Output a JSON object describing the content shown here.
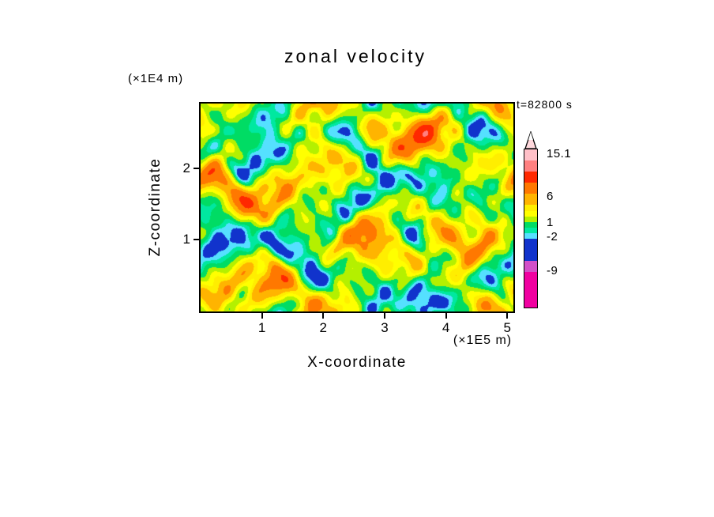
{
  "chart_data": {
    "type": "heatmap",
    "title": "zonal velocity",
    "xlabel": "X-coordinate",
    "ylabel": "Z-coordinate",
    "x_units_label": "(×1E5 m)",
    "y_units_label": "(×1E4 m)",
    "time_annotation": "t=82800 s",
    "x_ticks": [
      1,
      2,
      3,
      4,
      5
    ],
    "y_ticks": [
      1,
      2
    ],
    "x_range": [
      0,
      5.1
    ],
    "y_range": [
      0,
      2.9
    ],
    "contour_levels": [
      -12,
      -9,
      -2,
      -1,
      0,
      1,
      2,
      3,
      4,
      6,
      9,
      12,
      15.1
    ],
    "fill_colors": [
      "#F000A0",
      "#D24FC8",
      "#1133CC",
      "#55E0FF",
      "#00E8A0",
      "#00DC64",
      "#B4F000",
      "#FFFF00",
      "#FFEE00",
      "#FFB400",
      "#FF7800",
      "#FF2800",
      "#FF8080",
      "#FFC0C8"
    ],
    "colorbar": {
      "labels": [
        "15.1",
        "6",
        "1",
        "-2",
        "-9"
      ],
      "tip_color": "#FFD8DC",
      "segments_top_to_bottom": [
        {
          "color": "#FFC0C8",
          "h": 14
        },
        {
          "color": "#FF8080",
          "h": 14
        },
        {
          "color": "#FF2800",
          "h": 14
        },
        {
          "color": "#FF7800",
          "h": 14
        },
        {
          "color": "#FFB400",
          "h": 14
        },
        {
          "color": "#FFEE00",
          "h": 8
        },
        {
          "color": "#FFFF00",
          "h": 7
        },
        {
          "color": "#B4F000",
          "h": 7
        },
        {
          "color": "#00DC64",
          "h": 7
        },
        {
          "color": "#00E8A0",
          "h": 7
        },
        {
          "color": "#55E0FF",
          "h": 7
        },
        {
          "color": "#1133CC",
          "h": 28
        },
        {
          "color": "#D24FC8",
          "h": 14
        },
        {
          "color": "#F000A0",
          "h": 45
        }
      ]
    }
  }
}
